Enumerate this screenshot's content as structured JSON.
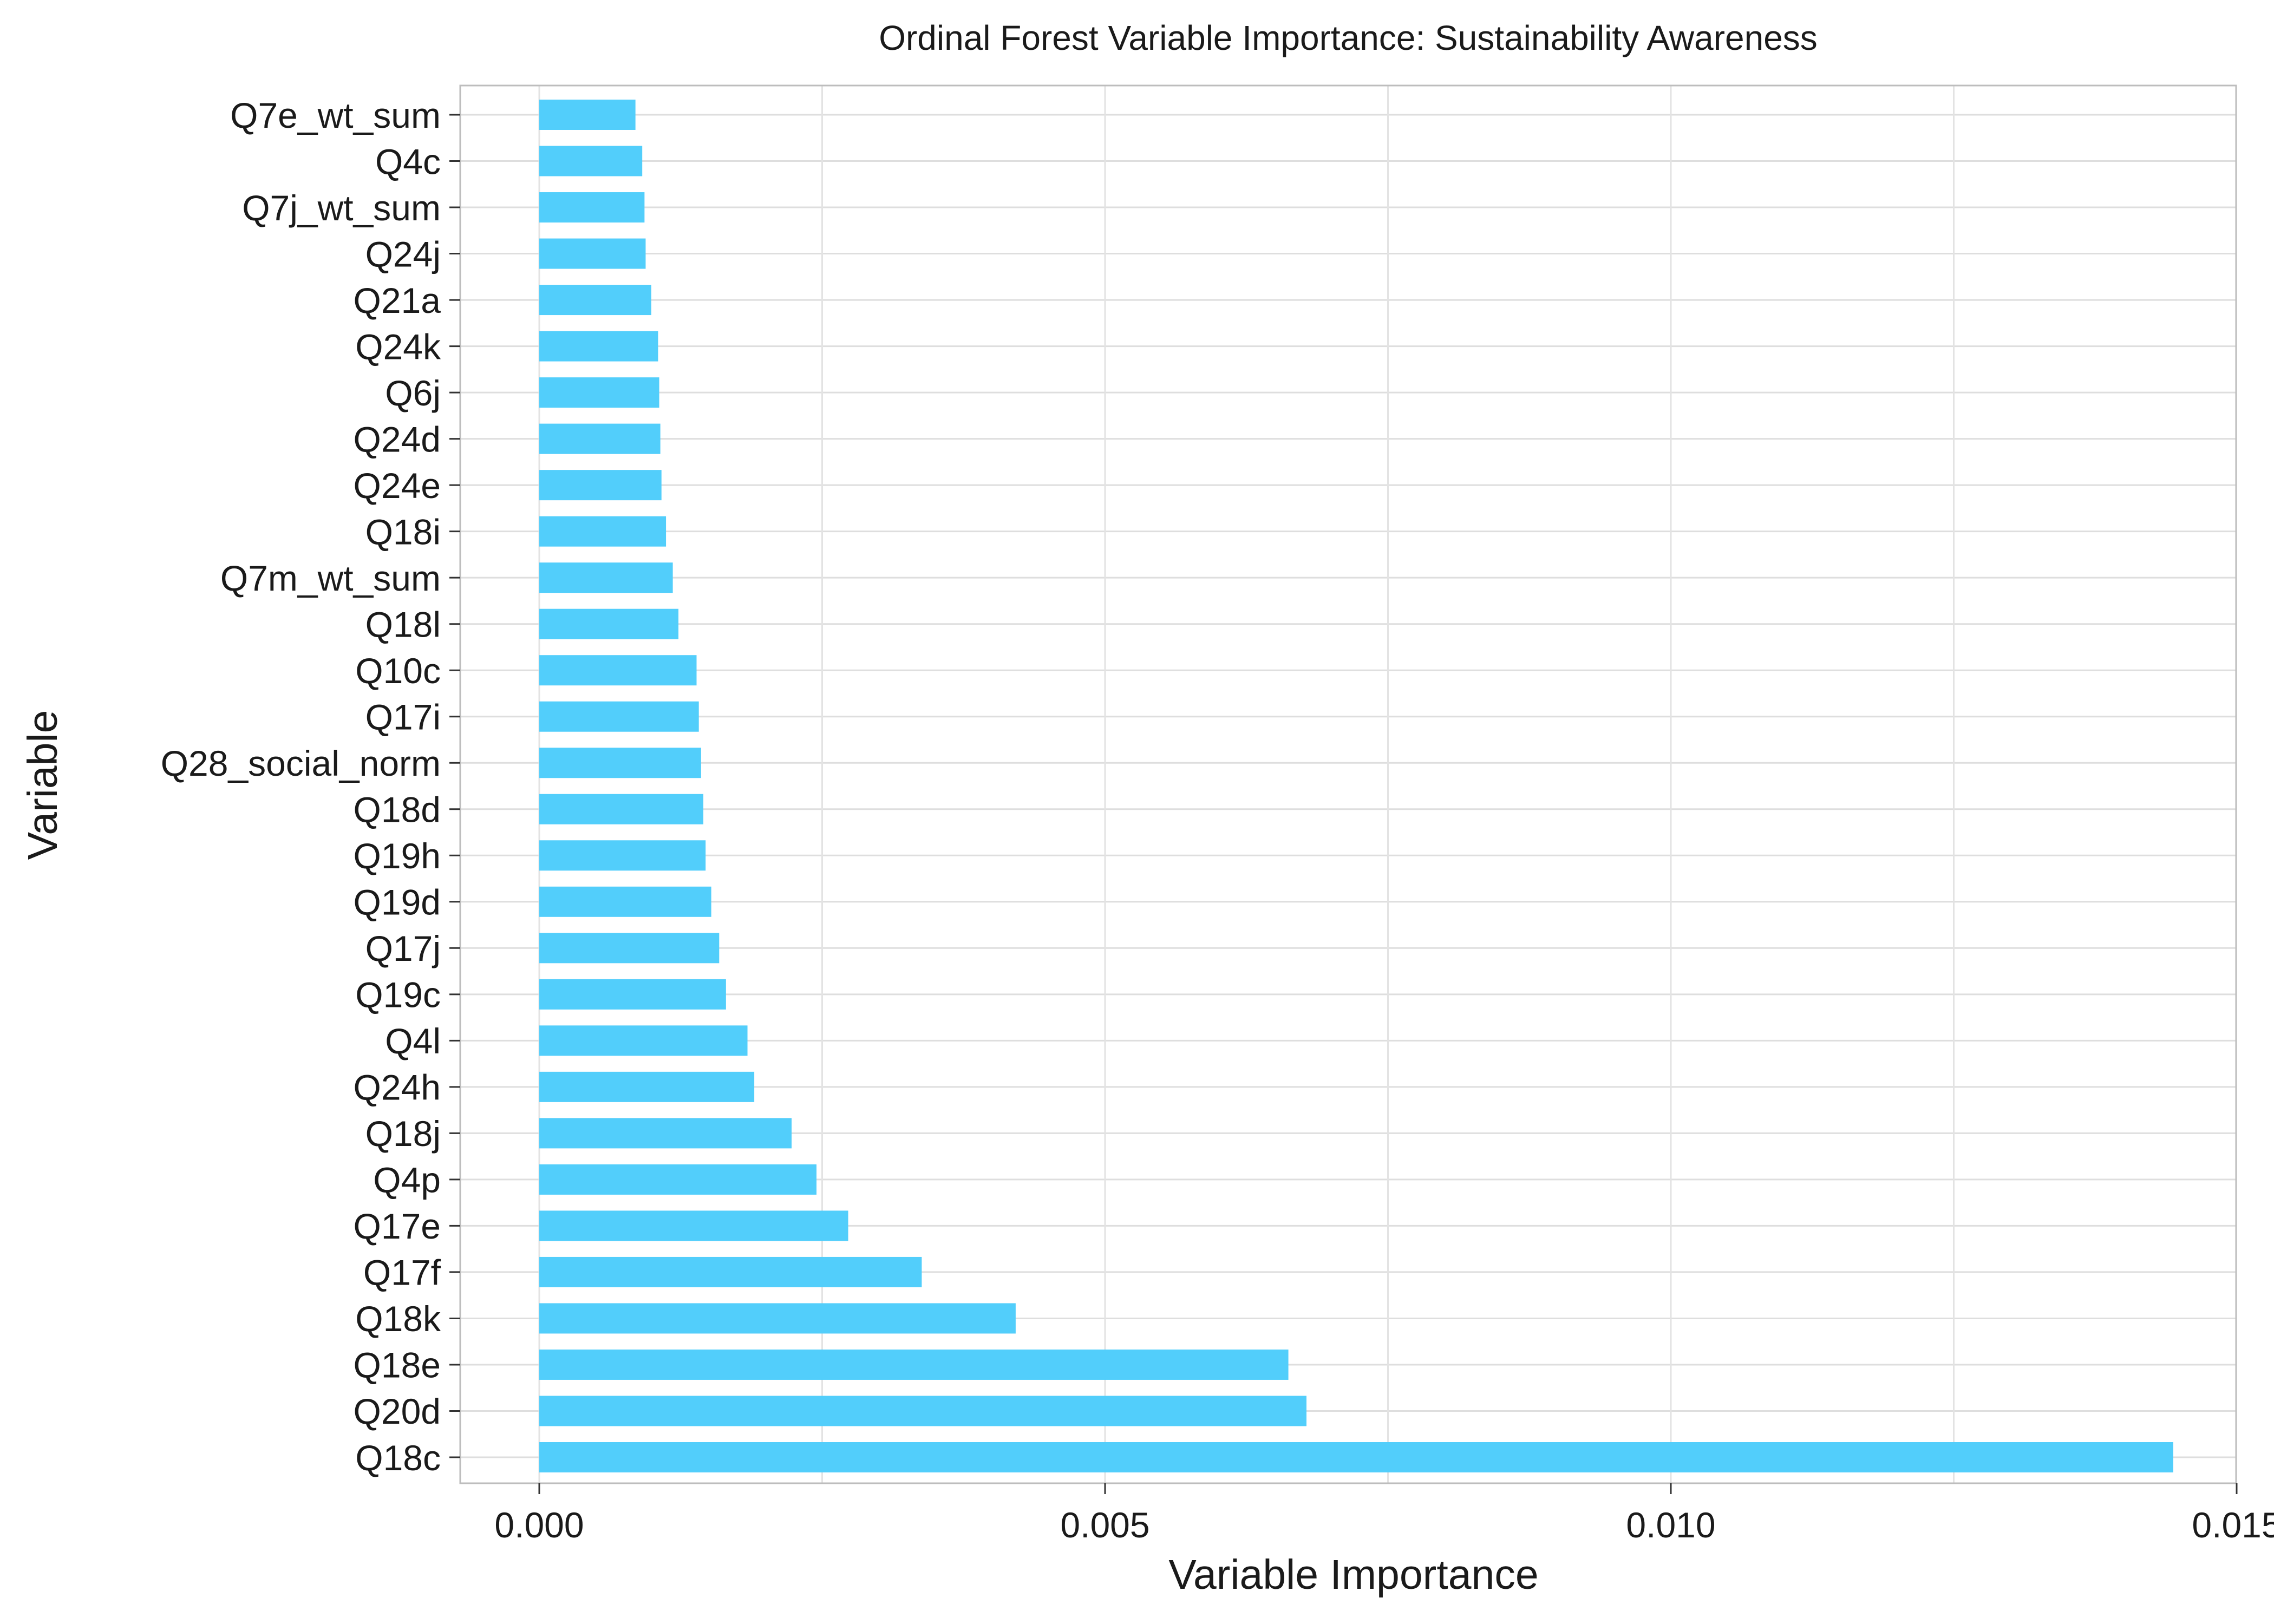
{
  "chart_data": {
    "type": "bar",
    "orientation": "horizontal",
    "title": "Ordinal Forest Variable Importance: Sustainability Awareness",
    "xlabel": "Variable Importance",
    "ylabel": "Variable",
    "xlim": [
      -0.00015,
      0.015
    ],
    "xticks": [
      0.0,
      0.005,
      0.01,
      0.015
    ],
    "xtick_labels": [
      "0.000",
      "0.005",
      "0.010",
      "0.015"
    ],
    "grid": true,
    "bar_color": "#52cefb",
    "categories": [
      "Q7e_wt_sum",
      "Q4c",
      "Q7j_wt_sum",
      "Q24j",
      "Q21a",
      "Q24k",
      "Q6j",
      "Q24d",
      "Q24e",
      "Q18i",
      "Q7m_wt_sum",
      "Q18l",
      "Q10c",
      "Q17i",
      "Q28_social_norm",
      "Q18d",
      "Q19h",
      "Q19d",
      "Q17j",
      "Q19c",
      "Q4l",
      "Q24h",
      "Q18j",
      "Q4p",
      "Q17e",
      "Q17f",
      "Q18k",
      "Q18e",
      "Q20d",
      "Q18c"
    ],
    "values": [
      0.00085,
      0.00091,
      0.00093,
      0.00094,
      0.00099,
      0.00105,
      0.00106,
      0.00107,
      0.00108,
      0.00112,
      0.00118,
      0.00123,
      0.00139,
      0.00141,
      0.00143,
      0.00145,
      0.00147,
      0.00152,
      0.00159,
      0.00165,
      0.00184,
      0.0019,
      0.00223,
      0.00245,
      0.00273,
      0.00338,
      0.00421,
      0.00662,
      0.00678,
      0.01444
    ]
  }
}
